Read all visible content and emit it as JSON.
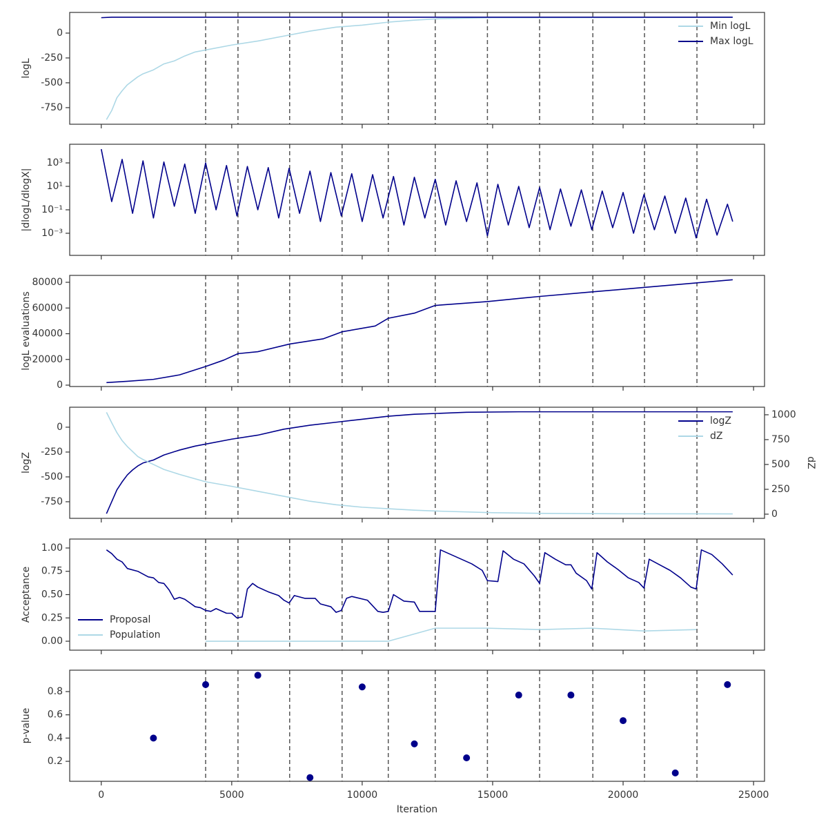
{
  "chart_data": [
    {
      "type": "line",
      "ylabel": "logL",
      "legend": "upper right",
      "xlim": [
        -1210,
        25420
      ],
      "xticks": [
        0,
        5000,
        10000,
        15000,
        20000,
        25000
      ],
      "ylim": [
        -917,
        208
      ],
      "yticks": [
        -750,
        -500,
        -250,
        0
      ],
      "vlines": [
        4000,
        5240,
        7220,
        9230,
        11000,
        12800,
        14800,
        16800,
        18840,
        20820,
        22830
      ],
      "series": [
        {
          "name": "Min logL",
          "color": "#add8e6",
          "x": [
            200,
            400,
            600,
            800,
            1000,
            1200,
            1400,
            1600,
            1800,
            2000,
            2400,
            2800,
            3200,
            3600,
            4000,
            5000,
            6000,
            7000,
            8000,
            9000,
            10000,
            11000,
            12000,
            13000,
            14000,
            15000,
            24200
          ],
          "values": [
            -870,
            -780,
            -650,
            -580,
            -520,
            -480,
            -440,
            -410,
            -390,
            -370,
            -310,
            -280,
            -230,
            -190,
            -170,
            -120,
            -80,
            -30,
            20,
            60,
            80,
            110,
            130,
            145,
            150,
            155,
            158
          ]
        },
        {
          "name": "Max logL",
          "color": "#00008b",
          "x": [
            0,
            400,
            24200
          ],
          "values": [
            155,
            160,
            160
          ]
        }
      ]
    },
    {
      "type": "line",
      "ylabel": "|dlogL/dlogX|",
      "log_y": true,
      "xlim": [
        -1210,
        25420
      ],
      "xticks": [
        0,
        5000,
        10000,
        15000,
        20000,
        25000
      ],
      "ylim": [
        1.3e-05,
        39000
      ],
      "yticks": [
        {
          "value": 0.001,
          "label": "10⁻³"
        },
        {
          "value": 0.1,
          "label": "10⁻¹"
        },
        {
          "value": 10,
          "label": "10¹"
        },
        {
          "value": 1000,
          "label": "10³"
        }
      ],
      "vlines": [
        4000,
        5240,
        7220,
        9230,
        11000,
        12800,
        14800,
        16800,
        18840,
        20820,
        22830
      ],
      "series": [
        {
          "color": "#00008b",
          "x": [
            0,
            400,
            800,
            1200,
            1600,
            2000,
            2400,
            2800,
            3200,
            3600,
            4000,
            4400,
            4800,
            5200,
            5600,
            6000,
            6400,
            6800,
            7200,
            7600,
            8000,
            8400,
            8800,
            9200,
            9600,
            10000,
            10400,
            10800,
            11200,
            11600,
            12000,
            12400,
            12800,
            13200,
            13600,
            14000,
            14400,
            14800,
            15200,
            15600,
            16000,
            16400,
            16800,
            17200,
            17600,
            18000,
            18400,
            18800,
            19200,
            19600,
            20000,
            20400,
            20800,
            21200,
            21600,
            22000,
            22400,
            22800,
            23200,
            23600,
            24000,
            24200
          ],
          "values": [
            15000,
            0.5,
            2000,
            0.05,
            1500,
            0.02,
            1200,
            0.2,
            800,
            0.05,
            1000,
            0.1,
            600,
            0.03,
            500,
            0.1,
            400,
            0.02,
            350,
            0.05,
            200,
            0.01,
            150,
            0.03,
            120,
            0.01,
            100,
            0.02,
            70,
            0.005,
            60,
            0.02,
            40,
            0.005,
            30,
            0.01,
            20,
            0.0006,
            15,
            0.005,
            10,
            0.003,
            8,
            0.002,
            6,
            0.004,
            5,
            0.002,
            4,
            0.003,
            3,
            0.001,
            2,
            0.002,
            1.5,
            0.001,
            1,
            0.0004,
            0.8,
            0.0007,
            0.3,
            0.01
          ]
        }
      ]
    },
    {
      "type": "line",
      "ylabel": "logL evaluations",
      "xlim": [
        -1210,
        25420
      ],
      "xticks": [
        0,
        5000,
        10000,
        15000,
        20000,
        25000
      ],
      "ylim": [
        -1070,
        85370
      ],
      "yticks": [
        0,
        20000,
        40000,
        60000,
        80000
      ],
      "vlines": [
        4000,
        5240,
        7220,
        9230,
        11000,
        12800,
        14800,
        16800,
        18840,
        20820,
        22830
      ],
      "series": [
        {
          "color": "#00008b",
          "x": [
            200,
            1000,
            2000,
            3000,
            4000,
            4700,
            5240,
            6000,
            7220,
            8500,
            9230,
            10500,
            11000,
            12000,
            12800,
            14800,
            16800,
            18800,
            20800,
            22800,
            24200
          ],
          "values": [
            2000,
            3000,
            4500,
            8000,
            14500,
            19500,
            24500,
            26000,
            32000,
            36000,
            41500,
            46000,
            52000,
            56000,
            62000,
            65000,
            69000,
            72500,
            76000,
            79500,
            82000
          ]
        }
      ]
    },
    {
      "type": "line",
      "ylabel": "logZ",
      "y2label": "dZ",
      "legend": "upper right",
      "xlim": [
        -1210,
        25420
      ],
      "xticks": [
        0,
        5000,
        10000,
        15000,
        20000,
        25000
      ],
      "ylim": [
        -917,
        201
      ],
      "yticks": [
        -750,
        -500,
        -250,
        0
      ],
      "y2lim": [
        -42,
        1076
      ],
      "y2ticks": [
        0,
        250,
        500,
        750,
        1000
      ],
      "vlines": [
        4000,
        5240,
        7220,
        9230,
        11000,
        12800,
        14800,
        16800,
        18840,
        20820,
        22830
      ],
      "series": [
        {
          "name": "logZ",
          "color": "#00008b",
          "x": [
            200,
            400,
            600,
            800,
            1000,
            1200,
            1400,
            1600,
            2000,
            2400,
            3000,
            3600,
            4000,
            5000,
            6000,
            7000,
            8000,
            9000,
            10000,
            11000,
            12000,
            13000,
            14000,
            16000,
            24200
          ],
          "values": [
            -870,
            -750,
            -630,
            -550,
            -480,
            -430,
            -390,
            -360,
            -330,
            -280,
            -230,
            -190,
            -170,
            -120,
            -80,
            -20,
            20,
            50,
            80,
            110,
            130,
            140,
            150,
            155,
            155
          ]
        },
        {
          "name": "dZ",
          "color": "#add8e6",
          "axis": "y2",
          "x": [
            200,
            400,
            600,
            800,
            1000,
            1200,
            1400,
            1600,
            2000,
            2400,
            3000,
            4000,
            5000,
            6000,
            7000,
            8000,
            9000,
            10000,
            11000,
            12000,
            13000,
            15000,
            17000,
            20000,
            24200
          ],
          "values": [
            1025,
            920,
            820,
            740,
            680,
            630,
            580,
            550,
            500,
            450,
            400,
            326,
            280,
            230,
            180,
            130,
            95,
            70,
            55,
            40,
            30,
            15,
            8,
            4,
            3
          ]
        }
      ]
    },
    {
      "type": "line",
      "ylabel": "Acceptance",
      "legend": "lower left",
      "xlim": [
        -1210,
        25420
      ],
      "xticks": [
        0,
        5000,
        10000,
        15000,
        20000,
        25000
      ],
      "ylim": [
        -0.096,
        1.096
      ],
      "yticks": [
        {
          "value": 0,
          "label": "0.00"
        },
        {
          "value": 0.25,
          "label": "0.25"
        },
        {
          "value": 0.5,
          "label": "0.50"
        },
        {
          "value": 0.75,
          "label": "0.75"
        },
        {
          "value": 1,
          "label": "1.00"
        }
      ],
      "vlines": [
        4000,
        5240,
        7220,
        9230,
        11000,
        12800,
        14800,
        16800,
        18840,
        20820,
        22830
      ],
      "series": [
        {
          "name": "Proposal",
          "color": "#00008b",
          "x": [
            200,
            400,
            600,
            800,
            1000,
            1400,
            1800,
            2000,
            2200,
            2400,
            2600,
            2800,
            3000,
            3200,
            3400,
            3600,
            3800,
            4000,
            4200,
            4400,
            4800,
            5000,
            5200,
            5400,
            5600,
            5800,
            6000,
            6400,
            6800,
            7000,
            7200,
            7400,
            7800,
            8200,
            8400,
            8800,
            9000,
            9200,
            9400,
            9600,
            10200,
            10600,
            10800,
            11000,
            11200,
            11600,
            12000,
            12200,
            12800,
            13000,
            13400,
            13800,
            14200,
            14600,
            14800,
            15200,
            15400,
            15800,
            16200,
            16600,
            16800,
            17000,
            17400,
            17800,
            18000,
            18200,
            18600,
            18800,
            19000,
            19400,
            19800,
            20200,
            20600,
            20800,
            21000,
            21400,
            21800,
            22200,
            22600,
            22800,
            23000,
            23400,
            23800,
            24200
          ],
          "values": [
            0.98,
            0.94,
            0.88,
            0.85,
            0.78,
            0.75,
            0.69,
            0.68,
            0.63,
            0.62,
            0.55,
            0.45,
            0.47,
            0.45,
            0.41,
            0.37,
            0.36,
            0.33,
            0.32,
            0.35,
            0.3,
            0.3,
            0.25,
            0.26,
            0.56,
            0.62,
            0.58,
            0.53,
            0.49,
            0.44,
            0.41,
            0.49,
            0.46,
            0.46,
            0.4,
            0.37,
            0.31,
            0.33,
            0.46,
            0.48,
            0.44,
            0.32,
            0.31,
            0.32,
            0.5,
            0.43,
            0.42,
            0.32,
            0.32,
            0.98,
            0.93,
            0.88,
            0.83,
            0.76,
            0.65,
            0.64,
            0.97,
            0.88,
            0.83,
            0.7,
            0.62,
            0.95,
            0.88,
            0.82,
            0.82,
            0.73,
            0.65,
            0.56,
            0.95,
            0.85,
            0.77,
            0.68,
            0.63,
            0.57,
            0.88,
            0.82,
            0.76,
            0.68,
            0.58,
            0.56,
            0.98,
            0.93,
            0.83,
            0.71
          ]
        },
        {
          "name": "Population",
          "color": "#add8e6",
          "x": [
            4000,
            11000,
            12800,
            14800,
            16800,
            18800,
            20800,
            22800
          ],
          "values": [
            0,
            0,
            0.14,
            0.14,
            0.125,
            0.14,
            0.11,
            0.125
          ]
        }
      ]
    },
    {
      "type": "scatter",
      "ylabel": "p-value",
      "xlabel": "Iteration",
      "xlim": [
        -1210,
        25420
      ],
      "xticks": [
        0,
        5000,
        10000,
        15000,
        20000,
        25000
      ],
      "ylim": [
        0.028,
        0.984
      ],
      "yticks": [
        0.2,
        0.4,
        0.6,
        0.8
      ],
      "vlines": [
        4000,
        5240,
        7220,
        9230,
        11000,
        12800,
        14800,
        16800,
        18840,
        20820,
        22830
      ],
      "series": [
        {
          "color": "#00008b",
          "x": [
            2000,
            4000,
            6000,
            8000,
            10000,
            12000,
            14000,
            16000,
            18000,
            20000,
            22000,
            24000
          ],
          "values": [
            0.4,
            0.86,
            0.94,
            0.06,
            0.84,
            0.35,
            0.23,
            0.77,
            0.77,
            0.55,
            0.1,
            0.86
          ]
        }
      ]
    }
  ]
}
